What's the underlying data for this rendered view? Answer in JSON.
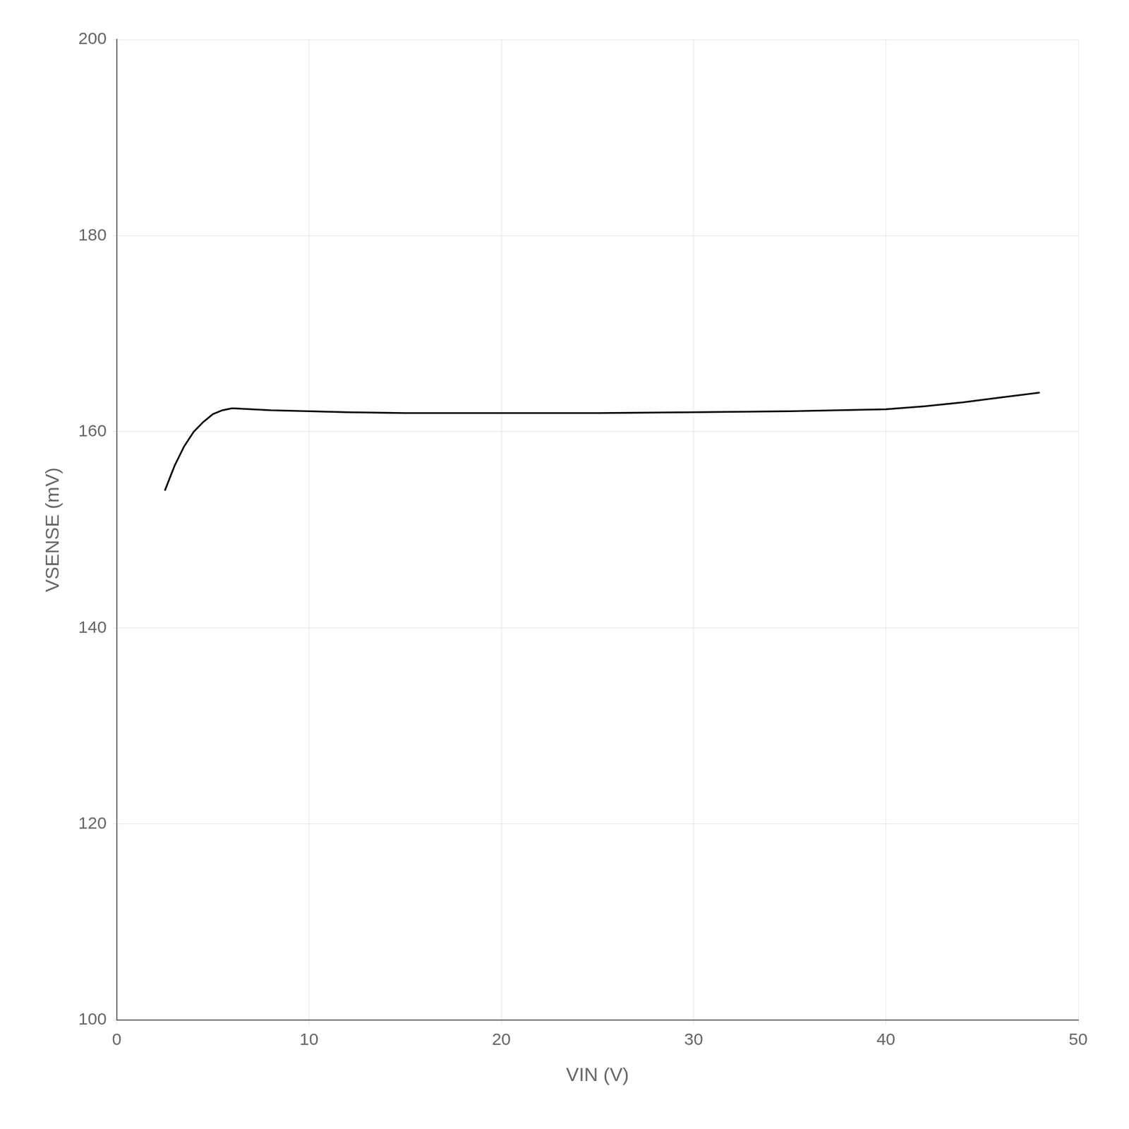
{
  "chart_data": {
    "type": "line",
    "xlabel": "VIN (V)",
    "ylabel": "VSENSE (mV)",
    "x": [
      2.5,
      3.0,
      3.5,
      4.0,
      4.5,
      5.0,
      5.5,
      6.0,
      7.0,
      8.0,
      10.0,
      12.0,
      15.0,
      20.0,
      25.0,
      30.0,
      35.0,
      40.0,
      42.0,
      44.0,
      46.0,
      48.0
    ],
    "values": [
      154.0,
      156.5,
      158.5,
      160.0,
      161.0,
      161.8,
      162.2,
      162.4,
      162.3,
      162.2,
      162.1,
      162.0,
      161.9,
      161.9,
      161.9,
      162.0,
      162.1,
      162.3,
      162.6,
      163.0,
      163.5,
      164.0
    ],
    "color": "#000000",
    "xlim": [
      0,
      50
    ],
    "ylim": [
      100,
      200
    ],
    "xticks": [
      0,
      10,
      20,
      30,
      40,
      50
    ],
    "yticks": [
      100,
      120,
      140,
      160,
      180,
      200
    ],
    "grid": true
  }
}
